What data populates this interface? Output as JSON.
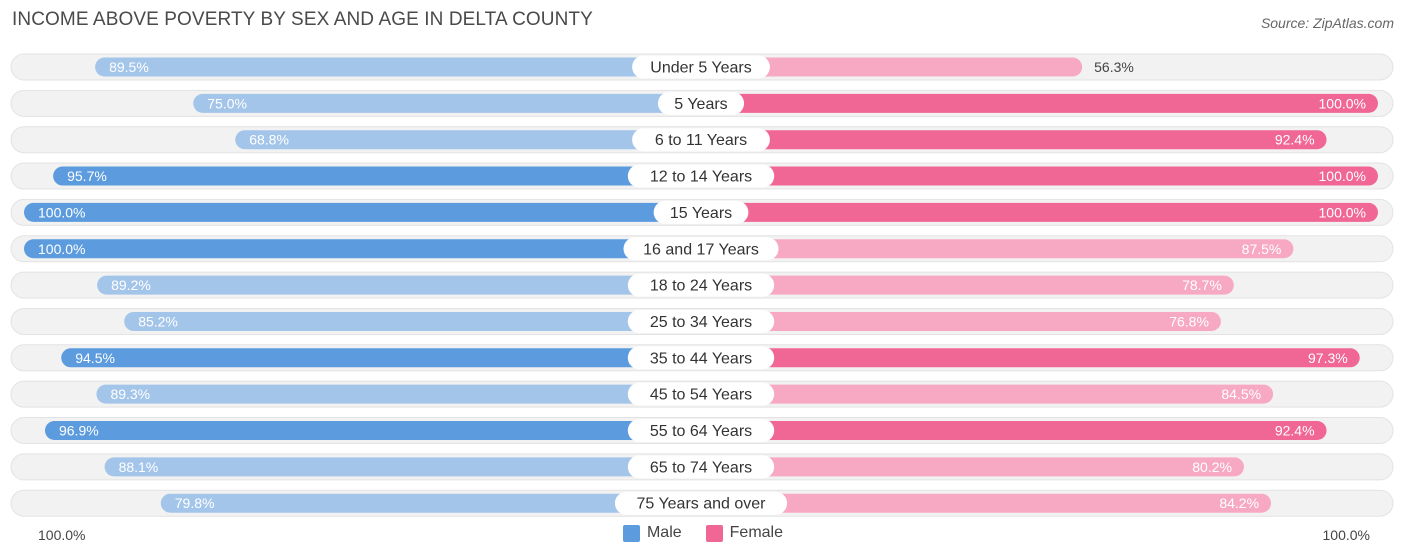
{
  "header": {
    "title": "INCOME ABOVE POVERTY BY SEX AND AGE IN DELTA COUNTY",
    "source": "Source: ZipAtlas.com"
  },
  "colors": {
    "male_dark": "#5b9bde",
    "male_light": "#a4c5ea",
    "female_dark": "#f06795",
    "female_light": "#f7a9c4",
    "row_bg": "#f2f2f2"
  },
  "chart_data": {
    "type": "bar",
    "title": "INCOME ABOVE POVERTY BY SEX AND AGE IN DELTA COUNTY",
    "orientation": "horizontal-diverging",
    "categories": [
      "Under 5 Years",
      "5 Years",
      "6 to 11 Years",
      "12 to 14 Years",
      "15 Years",
      "16 and 17 Years",
      "18 to 24 Years",
      "25 to 34 Years",
      "35 to 44 Years",
      "45 to 54 Years",
      "55 to 64 Years",
      "65 to 74 Years",
      "75 Years and over"
    ],
    "series": [
      {
        "name": "Male",
        "values": [
          89.5,
          75.0,
          68.8,
          95.7,
          100.0,
          100.0,
          89.2,
          85.2,
          94.5,
          89.3,
          96.9,
          88.1,
          79.8
        ],
        "labels": [
          "89.5%",
          "75.0%",
          "68.8%",
          "95.7%",
          "100.0%",
          "100.0%",
          "89.2%",
          "85.2%",
          "94.5%",
          "89.3%",
          "96.9%",
          "88.1%",
          "79.8%"
        ]
      },
      {
        "name": "Female",
        "values": [
          56.3,
          100.0,
          92.4,
          100.0,
          100.0,
          87.5,
          78.7,
          76.8,
          97.3,
          84.5,
          92.4,
          80.2,
          84.2
        ],
        "labels": [
          "56.3%",
          "100.0%",
          "92.4%",
          "100.0%",
          "100.0%",
          "87.5%",
          "78.7%",
          "76.8%",
          "97.3%",
          "84.5%",
          "92.4%",
          "80.2%",
          "84.2%"
        ]
      }
    ],
    "xlim": [
      0,
      100
    ],
    "axis_left_label": "100.0%",
    "axis_right_label": "100.0%",
    "legend": [
      "Male",
      "Female"
    ],
    "legend_position": "bottom-center"
  }
}
